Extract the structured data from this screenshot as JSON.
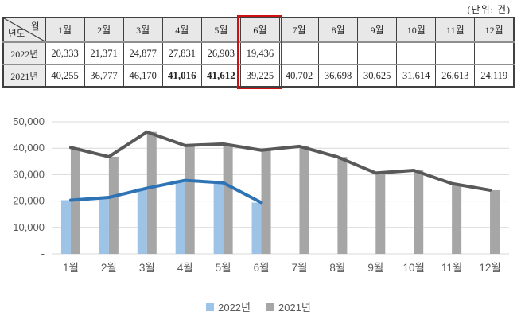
{
  "unit_label": "(단위: 건)",
  "table": {
    "corner_top": "월",
    "corner_bottom": "년도",
    "months": [
      "1월",
      "2월",
      "3월",
      "4월",
      "5월",
      "6월",
      "7월",
      "8월",
      "9월",
      "10월",
      "11월",
      "12월"
    ],
    "highlight_month_index": 5,
    "rows": [
      {
        "label": "2022년",
        "values": [
          "20,333",
          "21,371",
          "24,877",
          "27,831",
          "26,903",
          "19,436",
          "",
          "",
          "",
          "",
          "",
          ""
        ],
        "bold": []
      },
      {
        "label": "2021년",
        "values": [
          "40,255",
          "36,777",
          "46,170",
          "41,016",
          "41,612",
          "39,225",
          "40,702",
          "36,698",
          "30,625",
          "31,614",
          "26,613",
          "24,119"
        ],
        "bold": [
          3,
          4
        ]
      }
    ]
  },
  "chart_data": {
    "type": "bar+line combo",
    "categories": [
      "1월",
      "2월",
      "3월",
      "4월",
      "5월",
      "6월",
      "7월",
      "8월",
      "9월",
      "10월",
      "11월",
      "12월"
    ],
    "series": [
      {
        "name": "2022년",
        "values": [
          20333,
          21371,
          24877,
          27831,
          26903,
          19436,
          null,
          null,
          null,
          null,
          null,
          null
        ],
        "bar_color": "#9dc3e6",
        "line_color": "#2e74b5"
      },
      {
        "name": "2021년",
        "values": [
          40255,
          36777,
          46170,
          41016,
          41612,
          39225,
          40702,
          36698,
          30625,
          31614,
          26613,
          24119
        ],
        "bar_color": "#a6a6a6",
        "line_color": "#595959"
      }
    ],
    "ylim": [
      0,
      50000
    ],
    "yticks": [
      {
        "value": 0,
        "label": "-"
      },
      {
        "value": 10000,
        "label": "10,000"
      },
      {
        "value": 20000,
        "label": "20,000"
      },
      {
        "value": 30000,
        "label": "30,000"
      },
      {
        "value": 40000,
        "label": "40,000"
      },
      {
        "value": 50000,
        "label": "50,000"
      }
    ],
    "grid": true,
    "grid_color": "#d9d9d9",
    "axis_label_color": "#595959",
    "legend_position": "bottom",
    "title": "",
    "xlabel": "",
    "ylabel": ""
  }
}
